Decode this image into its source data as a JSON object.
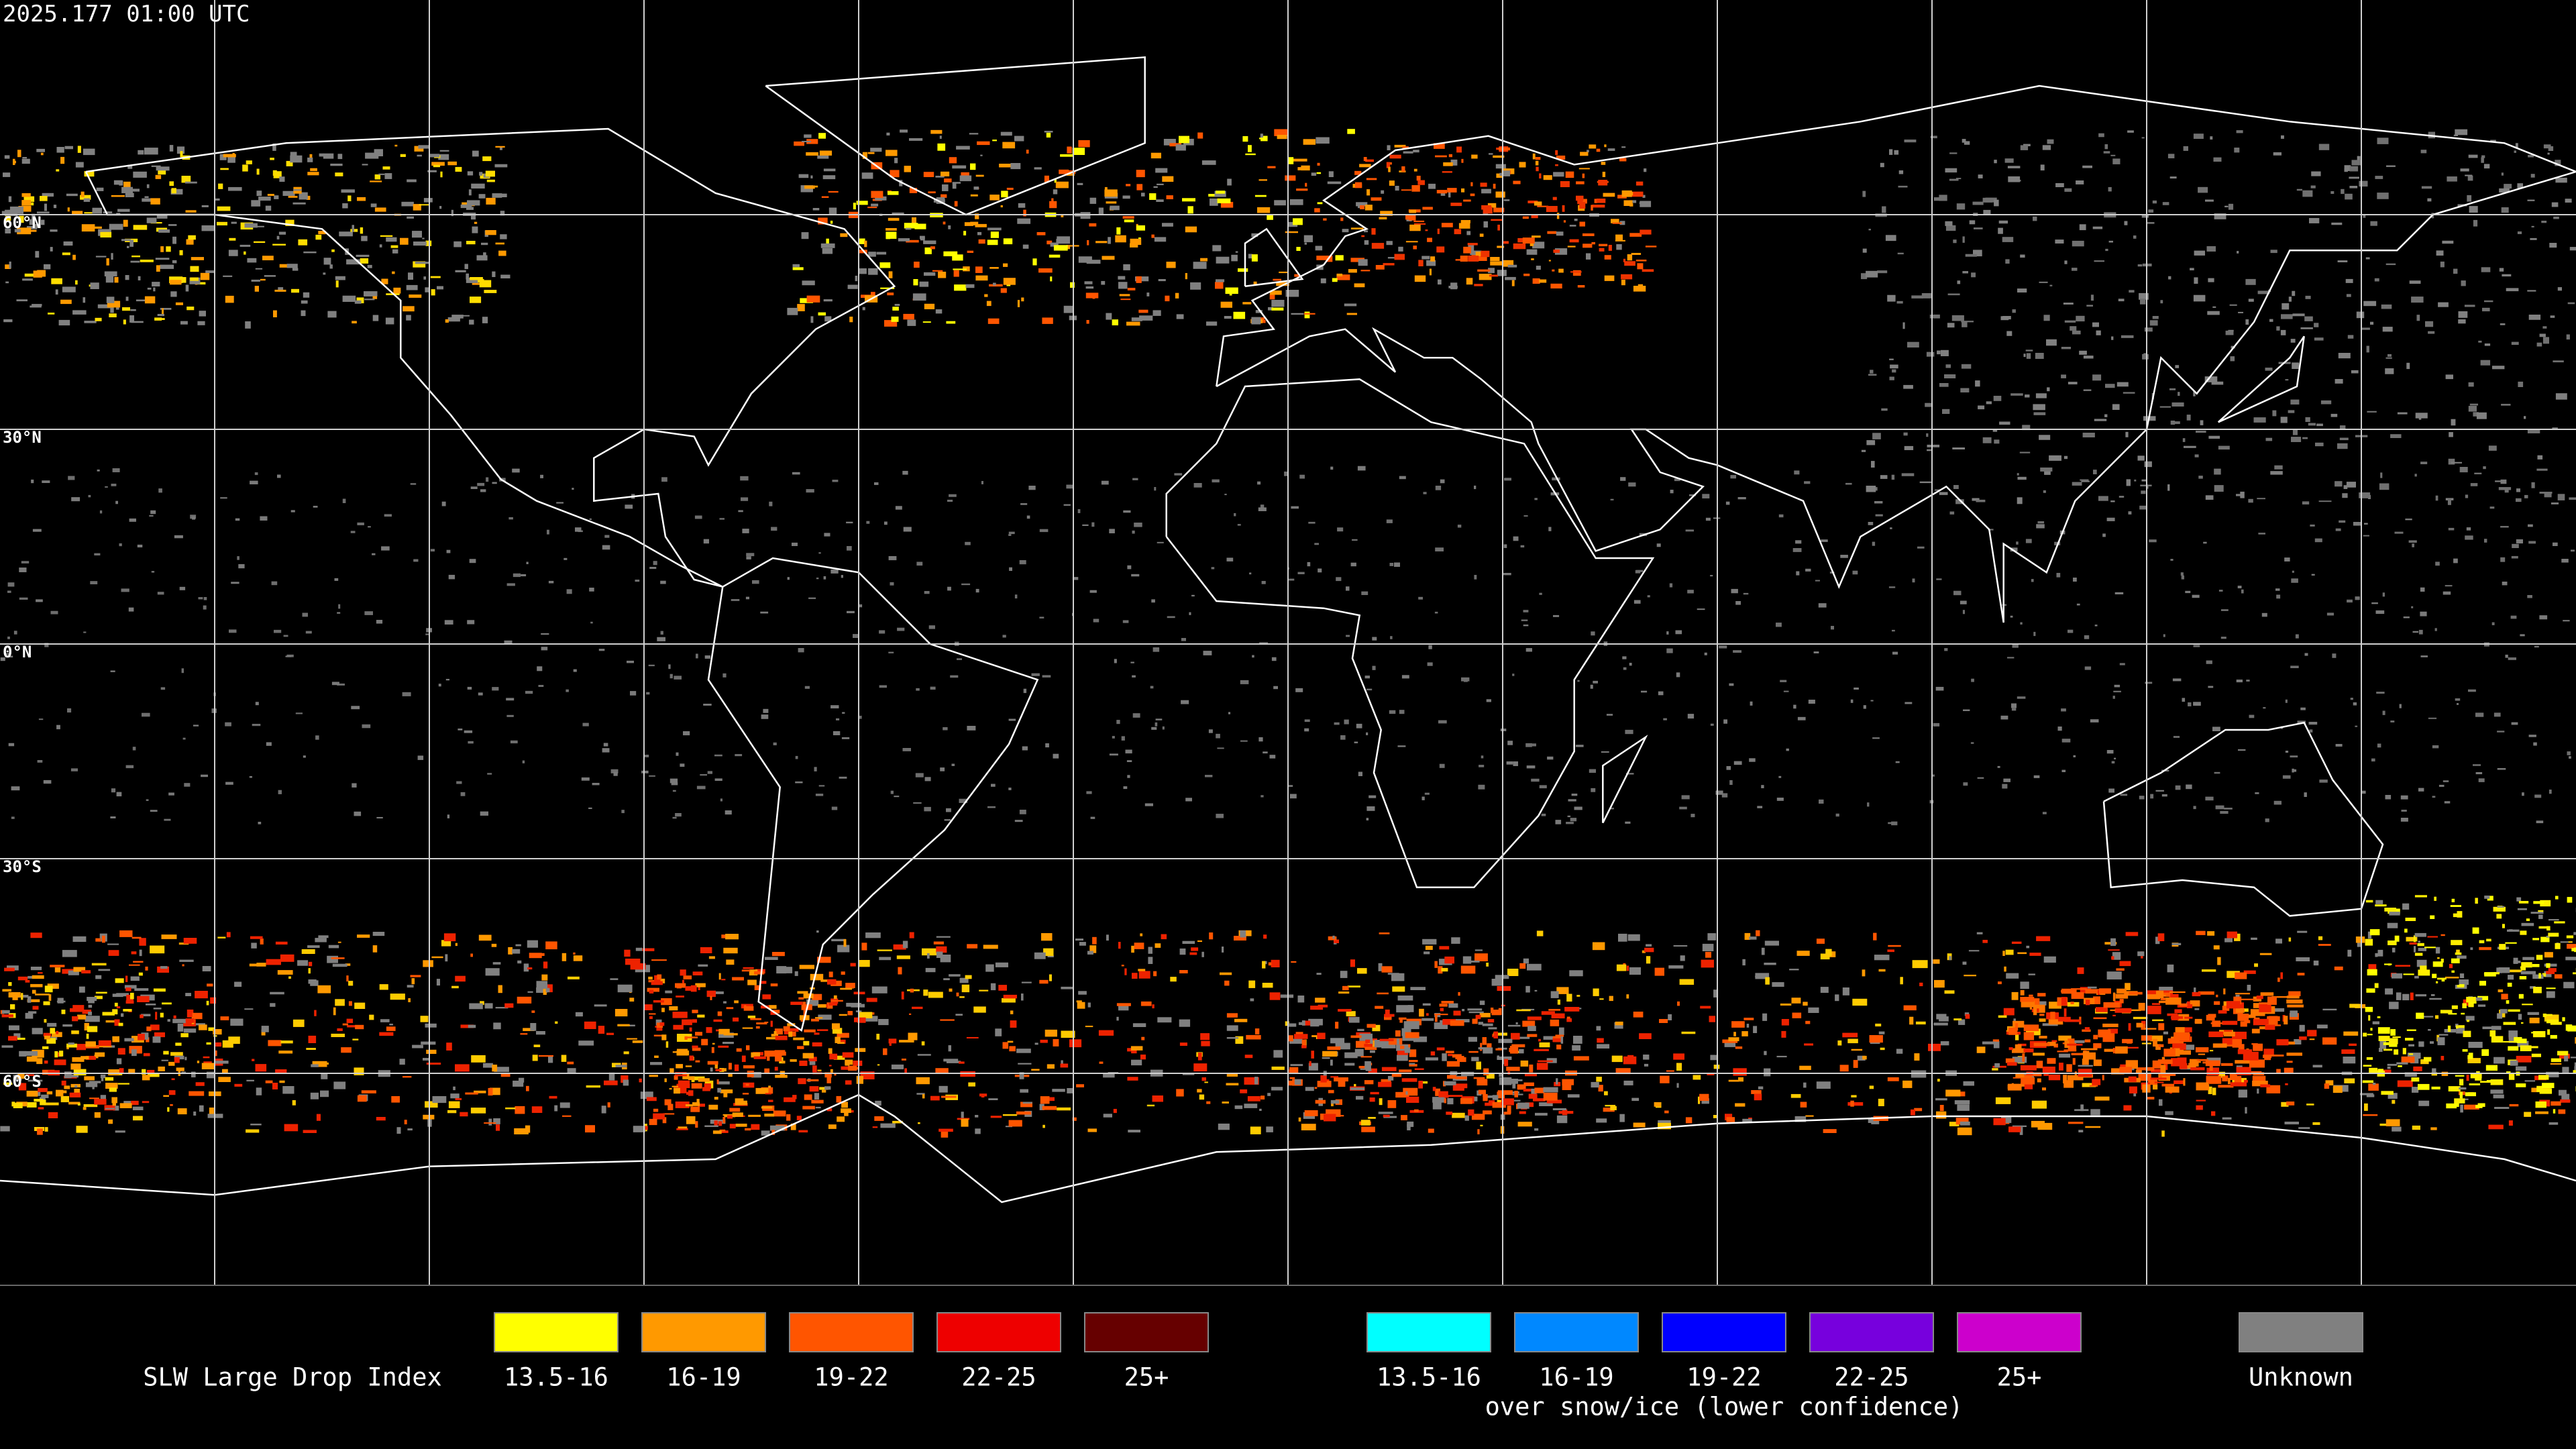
{
  "header": {
    "timestamp": "2025.177 01:00 UTC"
  },
  "map": {
    "latitude_labels": [
      "60°N",
      "30°N",
      "0°N",
      "30°S",
      "60°S"
    ]
  },
  "legend": {
    "title": "SLW Large Drop Index",
    "groups": [
      {
        "items": [
          {
            "label": "13.5-16",
            "color": "#ffff00"
          },
          {
            "label": "16-19",
            "color": "#ff9900"
          },
          {
            "label": "19-22",
            "color": "#ff5500"
          },
          {
            "label": "22-25",
            "color": "#ee0000"
          },
          {
            "label": "25+",
            "color": "#660000"
          }
        ]
      },
      {
        "items": [
          {
            "label": "13.5-16",
            "color": "#00ffff"
          },
          {
            "label": "16-19",
            "color": "#0088ff"
          },
          {
            "label": "19-22",
            "color": "#0000ff"
          },
          {
            "label": "22-25",
            "color": "#7700dd"
          },
          {
            "label": "25+",
            "color": "#cc00cc"
          }
        ],
        "caption": "over snow/ice (lower confidence)"
      },
      {
        "items": [
          {
            "label": "Unknown",
            "color": "#808080"
          }
        ]
      }
    ]
  }
}
